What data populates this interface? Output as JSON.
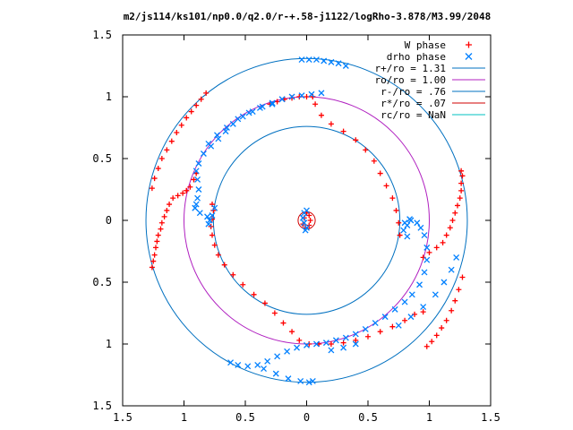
{
  "chart_data": {
    "type": "scatter",
    "title": "m2/js114/ks101/np0.0/q2.0/r-+.58-j1122/logRho-3.878/M3.99/2048",
    "xlim": [
      -1.5,
      1.5
    ],
    "ylim": [
      -1.5,
      1.5
    ],
    "x_ticks": [
      "1.5",
      "1",
      "0.5",
      "0",
      "0.5",
      "1",
      "1.5"
    ],
    "y_ticks": [
      "1.5",
      "1",
      "0.5",
      "0",
      "0.5",
      "1",
      "1.5"
    ],
    "grid": false,
    "legend_position": "top-right",
    "colors": {
      "w_phase": "#ff0000",
      "drho_phase": "#0080ff",
      "r_plus": "#0070c0",
      "ro": "#b020c0",
      "r_minus": "#0070c0",
      "r_star": "#d00000",
      "rc": "#00c0c0"
    },
    "legend": [
      {
        "label": "W phase",
        "marker": "plus",
        "color": "#ff0000"
      },
      {
        "label": "drho phase",
        "marker": "cross",
        "color": "#0080ff"
      },
      {
        "label": "r+/ro = 1.31",
        "marker": "line",
        "color": "#0070c0"
      },
      {
        "label": "ro/ro = 1.00",
        "marker": "line",
        "color": "#b020c0"
      },
      {
        "label": "r-/ro = .76",
        "marker": "line",
        "color": "#0070c0"
      },
      {
        "label": "r*/ro = .07",
        "marker": "line",
        "color": "#d00000"
      },
      {
        "label": "rc/ro = NaN",
        "marker": "line",
        "color": "#00c0c0"
      }
    ],
    "circles": [
      {
        "label": "r+/ro = 1.31",
        "r": 1.31,
        "color": "#0070c0"
      },
      {
        "label": "ro/ro = 1.00",
        "r": 1.0,
        "color": "#b020c0"
      },
      {
        "label": "r-/ro = .76",
        "r": 0.76,
        "color": "#0070c0"
      },
      {
        "label": "r*/ro = .07",
        "r": 0.07,
        "color": "#d00000"
      }
    ],
    "series": [
      {
        "name": "W phase",
        "marker": "plus",
        "color": "#ff0000",
        "points": [
          [
            -0.82,
            1.03
          ],
          [
            -0.86,
            0.98
          ],
          [
            -0.9,
            0.93
          ],
          [
            -0.94,
            0.88
          ],
          [
            -0.98,
            0.83
          ],
          [
            -1.02,
            0.77
          ],
          [
            -1.06,
            0.71
          ],
          [
            -1.1,
            0.64
          ],
          [
            -1.14,
            0.57
          ],
          [
            -1.18,
            0.5
          ],
          [
            -1.21,
            0.42
          ],
          [
            -1.24,
            0.34
          ],
          [
            -1.26,
            0.26
          ],
          [
            -0.98,
            0.24
          ],
          [
            -1.01,
            0.22
          ],
          [
            -1.05,
            0.2
          ],
          [
            -1.09,
            0.18
          ],
          [
            -1.12,
            0.13
          ],
          [
            -1.14,
            0.08
          ],
          [
            -1.16,
            0.03
          ],
          [
            -1.18,
            -0.02
          ],
          [
            -1.19,
            -0.07
          ],
          [
            -1.21,
            -0.12
          ],
          [
            -1.22,
            -0.17
          ],
          [
            -1.23,
            -0.22
          ],
          [
            -1.24,
            -0.28
          ],
          [
            -1.25,
            -0.33
          ],
          [
            -1.26,
            -0.38
          ],
          [
            -0.98,
            0.24
          ],
          [
            -0.95,
            0.27
          ],
          [
            -0.92,
            0.33
          ],
          [
            -0.9,
            0.38
          ],
          [
            -0.77,
            0.13
          ],
          [
            -0.76,
            0.08
          ],
          [
            -0.77,
            0.01
          ],
          [
            -0.78,
            -0.05
          ],
          [
            -0.77,
            -0.12
          ],
          [
            -0.75,
            -0.2
          ],
          [
            -0.72,
            -0.28
          ],
          [
            -0.67,
            -0.36
          ],
          [
            -0.6,
            -0.44
          ],
          [
            -0.52,
            -0.52
          ],
          [
            -0.43,
            -0.6
          ],
          [
            -0.34,
            -0.67
          ],
          [
            -0.26,
            -0.75
          ],
          [
            -0.19,
            -0.83
          ],
          [
            -0.12,
            -0.9
          ],
          [
            -0.06,
            -0.97
          ],
          [
            0.02,
            -1.0
          ],
          [
            0.1,
            -1.0
          ],
          [
            0.2,
            -1.0
          ],
          [
            0.3,
            -0.99
          ],
          [
            0.4,
            -0.97
          ],
          [
            0.5,
            -0.94
          ],
          [
            0.6,
            -0.9
          ],
          [
            0.7,
            -0.86
          ],
          [
            0.8,
            -0.81
          ],
          [
            0.88,
            -0.76
          ],
          [
            0.95,
            -0.74
          ],
          [
            0.05,
            1.0
          ],
          [
            0.0,
            1.0
          ],
          [
            -0.06,
            1.0
          ],
          [
            -0.12,
            0.99
          ],
          [
            -0.18,
            0.98
          ],
          [
            -0.24,
            0.96
          ],
          [
            -0.3,
            0.94
          ],
          [
            0.05,
            1.0
          ],
          [
            0.07,
            0.94
          ],
          [
            0.12,
            0.85
          ],
          [
            0.2,
            0.78
          ],
          [
            0.3,
            0.72
          ],
          [
            0.4,
            0.65
          ],
          [
            0.48,
            0.57
          ],
          [
            0.55,
            0.48
          ],
          [
            0.6,
            0.38
          ],
          [
            0.65,
            0.28
          ],
          [
            0.7,
            0.18
          ],
          [
            0.73,
            0.08
          ],
          [
            0.75,
            -0.02
          ],
          [
            0.76,
            -0.12
          ],
          [
            0.95,
            -0.3
          ],
          [
            1.0,
            -0.26
          ],
          [
            1.06,
            -0.22
          ],
          [
            1.11,
            -0.18
          ],
          [
            1.14,
            -0.12
          ],
          [
            1.17,
            -0.06
          ],
          [
            1.19,
            0.0
          ],
          [
            1.21,
            0.06
          ],
          [
            1.23,
            0.12
          ],
          [
            1.25,
            0.18
          ],
          [
            1.26,
            0.24
          ],
          [
            1.26,
            0.3
          ],
          [
            1.27,
            0.36
          ],
          [
            1.26,
            0.4
          ],
          [
            0.98,
            -1.02
          ],
          [
            1.02,
            -0.98
          ],
          [
            1.06,
            -0.93
          ],
          [
            1.1,
            -0.87
          ],
          [
            1.14,
            -0.81
          ],
          [
            1.18,
            -0.73
          ],
          [
            1.21,
            -0.65
          ],
          [
            1.24,
            -0.56
          ],
          [
            1.27,
            -0.46
          ],
          [
            0.0,
            0.06
          ],
          [
            0.02,
            0.04
          ],
          [
            0.03,
            0.0
          ],
          [
            0.02,
            -0.04
          ],
          [
            -0.01,
            -0.06
          ],
          [
            -0.03,
            -0.03
          ],
          [
            -0.02,
            0.02
          ]
        ]
      },
      {
        "name": "drho phase",
        "marker": "cross",
        "color": "#0080ff",
        "points": [
          [
            -0.91,
            0.1
          ],
          [
            -0.9,
            0.13
          ],
          [
            -0.89,
            0.18
          ],
          [
            -0.88,
            0.25
          ],
          [
            -0.89,
            0.33
          ],
          [
            -0.9,
            0.4
          ],
          [
            -0.88,
            0.46
          ],
          [
            -0.84,
            0.54
          ],
          [
            -0.78,
            0.6
          ],
          [
            -0.72,
            0.66
          ],
          [
            -0.66,
            0.72
          ],
          [
            -0.6,
            0.78
          ],
          [
            -0.52,
            0.84
          ],
          [
            -0.44,
            0.88
          ],
          [
            -0.36,
            0.92
          ],
          [
            -0.28,
            0.95
          ],
          [
            -0.2,
            0.98
          ],
          [
            -0.12,
            1.0
          ],
          [
            -0.04,
            1.01
          ],
          [
            0.04,
            1.02
          ],
          [
            0.12,
            1.03
          ],
          [
            -0.91,
            0.1
          ],
          [
            -0.87,
            0.06
          ],
          [
            -0.81,
            0.03
          ],
          [
            -0.79,
            0.0
          ],
          [
            -0.8,
            -0.03
          ],
          [
            -0.77,
            0.04
          ],
          [
            -0.75,
            0.1
          ],
          [
            -0.8,
            0.62
          ],
          [
            -0.73,
            0.69
          ],
          [
            -0.65,
            0.75
          ],
          [
            -0.56,
            0.82
          ],
          [
            -0.47,
            0.87
          ],
          [
            -0.38,
            0.91
          ],
          [
            -0.28,
            0.94
          ],
          [
            -0.04,
            1.3
          ],
          [
            0.02,
            1.3
          ],
          [
            0.08,
            1.3
          ],
          [
            0.14,
            1.29
          ],
          [
            0.2,
            1.28
          ],
          [
            0.26,
            1.27
          ],
          [
            0.32,
            1.25
          ],
          [
            0.79,
            -0.08
          ],
          [
            0.82,
            -0.04
          ],
          [
            0.84,
            0.01
          ],
          [
            0.82,
            -0.13
          ],
          [
            0.8,
            -0.02
          ],
          [
            0.85,
            0.0
          ],
          [
            0.9,
            -0.02
          ],
          [
            0.93,
            -0.06
          ],
          [
            0.96,
            -0.12
          ],
          [
            0.98,
            -0.22
          ],
          [
            0.98,
            -0.32
          ],
          [
            0.96,
            -0.42
          ],
          [
            0.92,
            -0.52
          ],
          [
            0.86,
            -0.6
          ],
          [
            0.8,
            -0.66
          ],
          [
            0.72,
            -0.72
          ],
          [
            0.64,
            -0.78
          ],
          [
            0.56,
            -0.83
          ],
          [
            0.48,
            -0.88
          ],
          [
            0.4,
            -0.92
          ],
          [
            0.32,
            -0.95
          ],
          [
            0.24,
            -0.97
          ],
          [
            0.16,
            -0.99
          ],
          [
            0.08,
            -1.0
          ],
          [
            0.0,
            -1.01
          ],
          [
            -0.08,
            -1.03
          ],
          [
            -0.16,
            -1.06
          ],
          [
            -0.24,
            -1.1
          ],
          [
            -0.32,
            -1.14
          ],
          [
            -0.4,
            -1.17
          ],
          [
            -0.48,
            -1.18
          ],
          [
            -0.56,
            -1.17
          ],
          [
            -0.62,
            -1.15
          ],
          [
            0.75,
            -0.85
          ],
          [
            0.85,
            -0.78
          ],
          [
            0.95,
            -0.7
          ],
          [
            1.05,
            -0.6
          ],
          [
            1.12,
            -0.5
          ],
          [
            1.18,
            -0.4
          ],
          [
            1.22,
            -0.3
          ],
          [
            0.4,
            -1.0
          ],
          [
            0.3,
            -1.03
          ],
          [
            0.2,
            -1.05
          ],
          [
            -0.35,
            -1.2
          ],
          [
            -0.25,
            -1.24
          ],
          [
            -0.15,
            -1.28
          ],
          [
            -0.05,
            -1.3
          ],
          [
            0.02,
            -1.31
          ],
          [
            0.05,
            -1.3
          ],
          [
            0.0,
            0.08
          ],
          [
            -0.02,
            0.06
          ],
          [
            -0.03,
            0.02
          ],
          [
            -0.02,
            -0.02
          ],
          [
            0.0,
            -0.06
          ],
          [
            -0.01,
            -0.08
          ]
        ]
      }
    ]
  }
}
